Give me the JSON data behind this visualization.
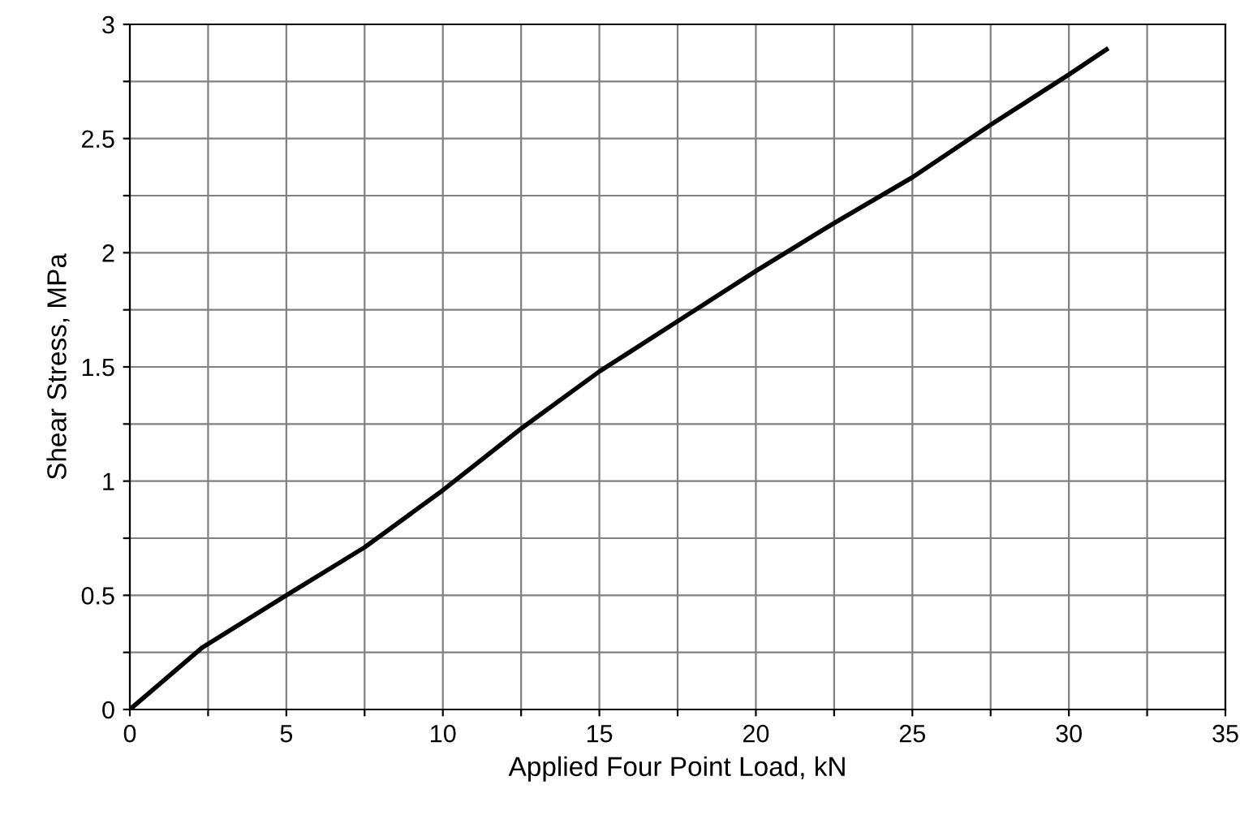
{
  "chart_data": {
    "type": "line",
    "xlabel": "Applied Four Point Load, kN",
    "ylabel": "Shear Stress, MPa",
    "xlim": [
      0,
      35
    ],
    "ylim": [
      0,
      3
    ],
    "xticks": [
      0,
      {
        "value": 2.5,
        "label": null
      },
      5,
      {
        "value": 7.5,
        "label": null
      },
      10,
      {
        "value": 12.5,
        "label": null
      },
      15,
      {
        "value": 17.5,
        "label": null
      },
      20,
      {
        "value": 22.5,
        "label": null
      },
      25,
      {
        "value": 27.5,
        "label": null
      },
      30,
      {
        "value": 32.5,
        "label": null
      },
      35
    ],
    "yticks": [
      0,
      {
        "value": 0.25,
        "label": null
      },
      0.5,
      {
        "value": 0.75,
        "label": null
      },
      1,
      {
        "value": 1.25,
        "label": null
      },
      1.5,
      {
        "value": 1.75,
        "label": null
      },
      2,
      {
        "value": 2.25,
        "label": null
      },
      2.5,
      {
        "value": 2.75,
        "label": null
      },
      3
    ],
    "grid": true,
    "marker": "none",
    "line_style": "solid",
    "series": [
      {
        "color": "#000000",
        "x": [
          0,
          2.3,
          5,
          7.5,
          10,
          12.5,
          15,
          17.5,
          20,
          22.5,
          25,
          27.5,
          30,
          31.2
        ],
        "values": [
          0,
          0.27,
          0.5,
          0.71,
          0.96,
          1.23,
          1.48,
          1.7,
          1.92,
          2.13,
          2.33,
          2.56,
          2.78,
          2.89
        ]
      }
    ]
  }
}
